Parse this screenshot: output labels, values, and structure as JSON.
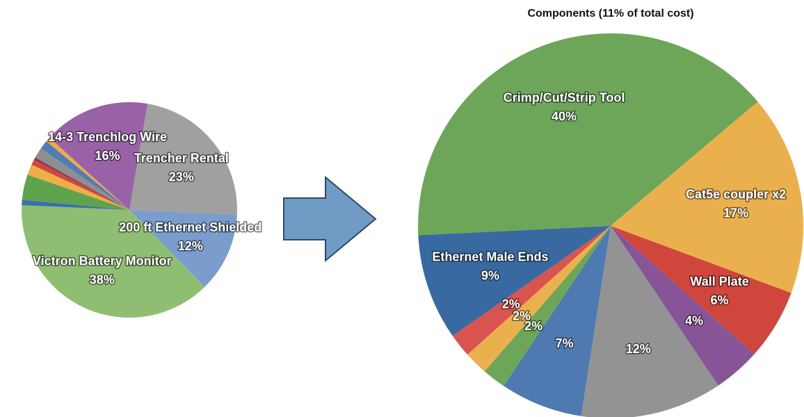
{
  "chart_data": [
    {
      "type": "pie",
      "categories": [
        "Trencher Rental",
        "200 ft Ethernet Shielded",
        "Victron Battery Monitor",
        null,
        null,
        null,
        null,
        null,
        null,
        null,
        null,
        "14-3 Trenchlog Wire"
      ],
      "values": [
        23,
        12,
        38,
        0.8,
        3.8,
        1.6,
        0.8,
        0.4,
        1.6,
        1.3,
        0.7,
        16
      ],
      "value_labels": [
        "23%",
        "12%",
        "38%",
        null,
        null,
        null,
        null,
        null,
        null,
        null,
        null,
        "16%"
      ],
      "colors": [
        "#a0a0a0",
        "#7a9dcd",
        "#8fbe73",
        "#3f6ea8",
        "#5fa34f",
        "#eeae48",
        "#d2473c",
        "#8b3a5a",
        "#8e8e8e",
        "#4f7db4",
        "#f0a84a",
        "#9a62a6"
      ]
    },
    {
      "type": "pie",
      "title": "Components (11% of total cost)",
      "categories": [
        "Cat5e coupler x2",
        "Wall Plate",
        null,
        null,
        null,
        null,
        null,
        null,
        "Ethernet Male Ends",
        "Crimp/Cut/Strip Tool"
      ],
      "values": [
        17,
        6,
        4,
        12,
        7,
        2,
        2,
        2,
        9,
        40
      ],
      "value_labels": [
        "17%",
        "6%",
        "4%",
        "12%",
        "7%",
        "2%",
        "2%",
        "2%",
        "9%",
        "40%"
      ],
      "colors": [
        "#ebb04e",
        "#d0463c",
        "#865497",
        "#939393",
        "#4e7ab1",
        "#6ea659",
        "#ebb04e",
        "#d9534f",
        "#386aa1",
        "#6ea659"
      ]
    }
  ]
}
